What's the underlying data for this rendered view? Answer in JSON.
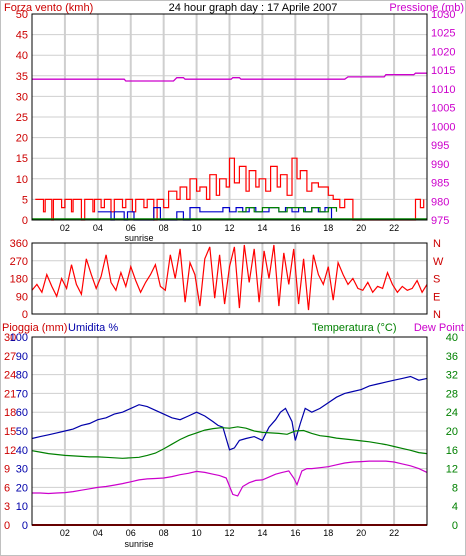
{
  "colors": {
    "background": "#ffffff",
    "frame": "#000000",
    "grid": "#cfcfcf",
    "wind_axis": "#cc0000",
    "pressure": "#cc00cc",
    "gust": "#ff0000",
    "wind_avg": "#0000cc",
    "wind_min": "#008000",
    "direction": "#ff0000",
    "rain": "#cc0000",
    "humidity": "#0000aa",
    "temperature": "#008000",
    "dewpoint": "#cc00cc"
  },
  "chart_data": [
    {
      "type": "line",
      "title": "24 hour graph day : 17 Aprile 2007",
      "left_axis_label": "Forza vento (kmh)",
      "right_axis_label": "Pressione (mb)",
      "x_ticks": [
        "02",
        "04",
        "06",
        "08",
        "10",
        "12",
        "14",
        "16",
        "18",
        "20",
        "22"
      ],
      "sunrise_label": "sunrise",
      "sunrise_hour": 6.5,
      "xlim": [
        0,
        24
      ],
      "wind_ylim": [
        0,
        50
      ],
      "wind_yticks": [
        0,
        5,
        10,
        15,
        20,
        25,
        30,
        35,
        40,
        45,
        50
      ],
      "pressure_ylim": [
        975,
        1030
      ],
      "pressure_yticks": [
        975,
        980,
        985,
        990,
        995,
        1000,
        1005,
        1010,
        1015,
        1020,
        1025,
        1030
      ],
      "wind_gust": {
        "x": [
          0.2,
          0.7,
          0.8,
          1.2,
          1.3,
          1.8,
          2.0,
          2.4,
          2.5,
          3.0,
          3.2,
          3.7,
          3.8,
          4.2,
          4.4,
          4.8,
          5.0,
          5.5,
          5.7,
          6.1,
          6.3,
          6.8,
          7.0,
          7.4,
          7.6,
          8.0,
          8.3,
          8.8,
          9.0,
          9.4,
          9.6,
          10.0,
          10.2,
          10.6,
          10.8,
          11.2,
          11.4,
          11.8,
          12.0,
          12.3,
          12.6,
          13.0,
          13.2,
          13.6,
          13.8,
          14.2,
          14.5,
          14.9,
          15.1,
          15.5,
          15.8,
          16.1,
          16.3,
          16.7,
          17.0,
          17.4,
          17.6,
          18.0,
          18.3,
          18.7,
          19.0,
          19.5,
          20.0,
          20.5,
          21.0,
          21.5,
          22.0,
          22.5,
          23.0,
          23.3,
          23.6,
          23.8
        ],
        "y": [
          5,
          2,
          5,
          0,
          5,
          3,
          5,
          2,
          5,
          0,
          5,
          2,
          5,
          3,
          5,
          2,
          5,
          3,
          5,
          2,
          5,
          3,
          5,
          0,
          5,
          3,
          7,
          5,
          8,
          5,
          10,
          7,
          8,
          5,
          11,
          6,
          10,
          8,
          15,
          9,
          13,
          7,
          12,
          8,
          10,
          7,
          13,
          8,
          11,
          6,
          15,
          10,
          12,
          7,
          9,
          8,
          8,
          6,
          5,
          3,
          5,
          0,
          0,
          0,
          0,
          0,
          0,
          0,
          0,
          5,
          3,
          5
        ]
      },
      "wind_avg": {
        "x": [
          4.0,
          4.8,
          5.0,
          5.6,
          5.8,
          6.2,
          7.4,
          7.8,
          8.8,
          9.2,
          9.6,
          10.2,
          11.6,
          12.0,
          12.4,
          12.8,
          13.2,
          13.6,
          14.0,
          14.4,
          15.0,
          15.4,
          15.8,
          16.2,
          16.6,
          17.0,
          17.4,
          17.8,
          18.2
        ],
        "y": [
          2,
          0,
          2,
          0,
          2,
          0,
          3,
          0,
          2,
          0,
          3,
          2,
          3,
          2,
          3,
          2,
          3,
          2,
          2,
          3,
          2,
          3,
          2,
          3,
          2,
          3,
          2,
          3,
          0
        ]
      },
      "wind_min": {
        "x": [
          12.5,
          13.0,
          13.5,
          14.0,
          14.5,
          15.0,
          15.5,
          16.0,
          16.5,
          17.0,
          17.5,
          18.0,
          18.5
        ],
        "y": [
          2,
          3,
          2,
          3,
          3,
          2,
          3,
          3,
          2,
          3,
          2,
          3,
          2
        ]
      },
      "pressure": {
        "x": [
          0,
          3.0,
          5.6,
          5.7,
          8.6,
          8.8,
          9.2,
          9.3,
          12.1,
          12.2,
          12.6,
          12.7,
          19.0,
          19.2,
          21.4,
          21.5,
          23.2,
          23.3,
          24
        ],
        "y": [
          1012.6,
          1012.6,
          1012.6,
          1012.1,
          1012.1,
          1013.0,
          1013.0,
          1012.6,
          1012.6,
          1013.0,
          1013.0,
          1012.6,
          1012.6,
          1013.2,
          1013.2,
          1013.8,
          1013.8,
          1014.2,
          1014.2
        ]
      }
    },
    {
      "type": "line",
      "title": "",
      "y_ticks": [
        0,
        90,
        180,
        270,
        360
      ],
      "direction_labels": [
        "N",
        "W",
        "S",
        "E",
        "N"
      ],
      "ylim": [
        0,
        360
      ],
      "direction": {
        "x": [
          0.0,
          0.3,
          0.6,
          0.9,
          1.2,
          1.5,
          1.8,
          2.1,
          2.4,
          2.7,
          3.0,
          3.3,
          3.6,
          3.9,
          4.2,
          4.5,
          4.8,
          5.1,
          5.4,
          5.7,
          6.0,
          6.3,
          6.6,
          6.9,
          7.2,
          7.5,
          7.8,
          8.1,
          8.4,
          8.7,
          9.0,
          9.3,
          9.6,
          9.9,
          10.2,
          10.5,
          10.8,
          11.1,
          11.4,
          11.7,
          12.0,
          12.3,
          12.6,
          12.9,
          13.2,
          13.5,
          13.8,
          14.1,
          14.4,
          14.7,
          15.0,
          15.3,
          15.6,
          15.9,
          16.2,
          16.5,
          16.8,
          17.1,
          17.4,
          17.7,
          18.0,
          18.3,
          18.6,
          18.9,
          19.2,
          19.5,
          19.8,
          20.1,
          20.4,
          20.7,
          21.0,
          21.3,
          21.6,
          21.9,
          22.2,
          22.5,
          22.8,
          23.1,
          23.4,
          23.7,
          24.0
        ],
        "y": [
          120,
          150,
          110,
          200,
          140,
          90,
          180,
          130,
          250,
          150,
          100,
          280,
          200,
          130,
          190,
          300,
          160,
          120,
          210,
          140,
          240,
          170,
          110,
          160,
          200,
          250,
          140,
          120,
          300,
          180,
          330,
          60,
          260,
          200,
          40,
          280,
          340,
          80,
          300,
          50,
          240,
          340,
          30,
          350,
          160,
          330,
          60,
          320,
          180,
          350,
          40,
          310,
          150,
          330,
          50,
          280,
          20,
          300,
          200,
          150,
          240,
          70,
          260,
          200,
          150,
          180,
          130,
          120,
          160,
          110,
          140,
          130,
          210,
          150,
          110,
          140,
          120,
          130,
          170,
          110,
          150
        ]
      }
    },
    {
      "type": "line",
      "title": "",
      "left_axis_label": "Pioggia (mm)",
      "left_axis_label_2": "Umidita %",
      "right_axis_label": "Temperatura (°C)",
      "right_axis_label_2": "Dew Point",
      "rain_ticks": [
        0,
        3,
        6,
        9,
        12,
        15,
        18,
        21,
        24,
        27,
        30
      ],
      "humidity_ticks": [
        0,
        10,
        20,
        30,
        40,
        50,
        60,
        70,
        80,
        90,
        100
      ],
      "temperature_ticks": [
        0,
        4,
        8,
        12,
        16,
        20,
        24,
        28,
        32,
        36,
        40
      ],
      "temperature_ylim": [
        0,
        40
      ],
      "humidity": {
        "x": [
          0,
          0.5,
          1.0,
          1.5,
          2.0,
          2.5,
          3.0,
          3.5,
          4.0,
          4.5,
          5.0,
          5.5,
          6.0,
          6.5,
          7.0,
          7.5,
          8.0,
          8.5,
          9.0,
          9.5,
          10.0,
          10.5,
          11.0,
          11.3,
          11.6,
          12.0,
          12.3,
          12.6,
          13.0,
          13.5,
          14.0,
          14.4,
          14.8,
          15.1,
          15.4,
          15.8,
          16.0,
          16.3,
          16.6,
          17.0,
          17.5,
          18.0,
          18.5,
          19.0,
          19.5,
          20.0,
          20.5,
          21.0,
          21.5,
          22.0,
          22.5,
          23.0,
          23.5,
          24.0
        ],
        "y": [
          46,
          47,
          48,
          49,
          50,
          51,
          53,
          54,
          56,
          57,
          59,
          60,
          62,
          64,
          63,
          61,
          59,
          57,
          56,
          58,
          60,
          58,
          55,
          53,
          52,
          40,
          41,
          45,
          46,
          47,
          45,
          52,
          56,
          60,
          62,
          55,
          45,
          54,
          62,
          60,
          62,
          65,
          68,
          70,
          71,
          72,
          74,
          75,
          76,
          77,
          78,
          79,
          77,
          78
        ]
      },
      "temperature": {
        "x": [
          0,
          0.5,
          1.0,
          1.5,
          2.0,
          2.5,
          3.0,
          3.5,
          4.0,
          4.5,
          5.0,
          5.5,
          6.0,
          6.5,
          7.0,
          7.5,
          8.0,
          8.5,
          9.0,
          9.5,
          10.0,
          10.5,
          11.0,
          11.5,
          12.0,
          12.5,
          13.0,
          13.5,
          14.0,
          14.5,
          15.0,
          15.5,
          16.0,
          16.5,
          17.0,
          17.5,
          18.0,
          18.5,
          19.0,
          19.5,
          20.0,
          20.5,
          21.0,
          21.5,
          22.0,
          22.5,
          23.0,
          23.5,
          24.0
        ],
        "y": [
          15.8,
          15.5,
          15.2,
          15.0,
          14.8,
          14.7,
          14.6,
          14.5,
          14.5,
          14.4,
          14.3,
          14.2,
          14.3,
          14.4,
          14.8,
          15.3,
          16.2,
          17.2,
          18.2,
          19.0,
          19.6,
          20.2,
          20.5,
          20.7,
          20.6,
          20.9,
          20.6,
          20.0,
          19.7,
          19.6,
          19.5,
          19.3,
          20.0,
          20.1,
          19.5,
          19.0,
          18.8,
          18.5,
          18.3,
          18.1,
          17.9,
          17.7,
          17.4,
          17.1,
          16.7,
          16.3,
          15.9,
          15.4,
          15.2
        ]
      },
      "dewpoint": {
        "x": [
          0,
          0.5,
          1.0,
          1.5,
          2.0,
          2.5,
          3.0,
          3.5,
          4.0,
          4.5,
          5.0,
          5.5,
          6.0,
          6.5,
          7.0,
          7.5,
          8.0,
          8.5,
          9.0,
          9.5,
          10.0,
          10.5,
          11.0,
          11.4,
          11.8,
          12.2,
          12.5,
          12.8,
          13.2,
          13.6,
          14.0,
          14.4,
          14.8,
          15.2,
          15.6,
          15.9,
          16.1,
          16.4,
          16.7,
          17.0,
          17.5,
          18.0,
          18.5,
          19.0,
          19.5,
          20.0,
          20.5,
          21.0,
          21.5,
          22.0,
          22.5,
          23.0,
          23.5,
          24.0
        ],
        "y": [
          6.8,
          6.8,
          6.7,
          6.8,
          6.9,
          7.1,
          7.4,
          7.7,
          8.0,
          8.2,
          8.5,
          8.8,
          9.2,
          9.6,
          9.8,
          9.9,
          10.0,
          10.3,
          10.7,
          11.0,
          11.4,
          11.2,
          10.8,
          10.5,
          10.0,
          6.5,
          6.2,
          8.2,
          9.0,
          9.5,
          9.6,
          10.2,
          10.8,
          11.2,
          11.5,
          10.0,
          8.6,
          11.5,
          12.0,
          12.0,
          12.2,
          12.4,
          12.8,
          13.2,
          13.4,
          13.5,
          13.6,
          13.6,
          13.6,
          13.4,
          13.0,
          12.6,
          12.0,
          11.2
        ]
      },
      "rain": {
        "x": [
          0,
          24
        ],
        "y": [
          0,
          0
        ]
      }
    }
  ]
}
